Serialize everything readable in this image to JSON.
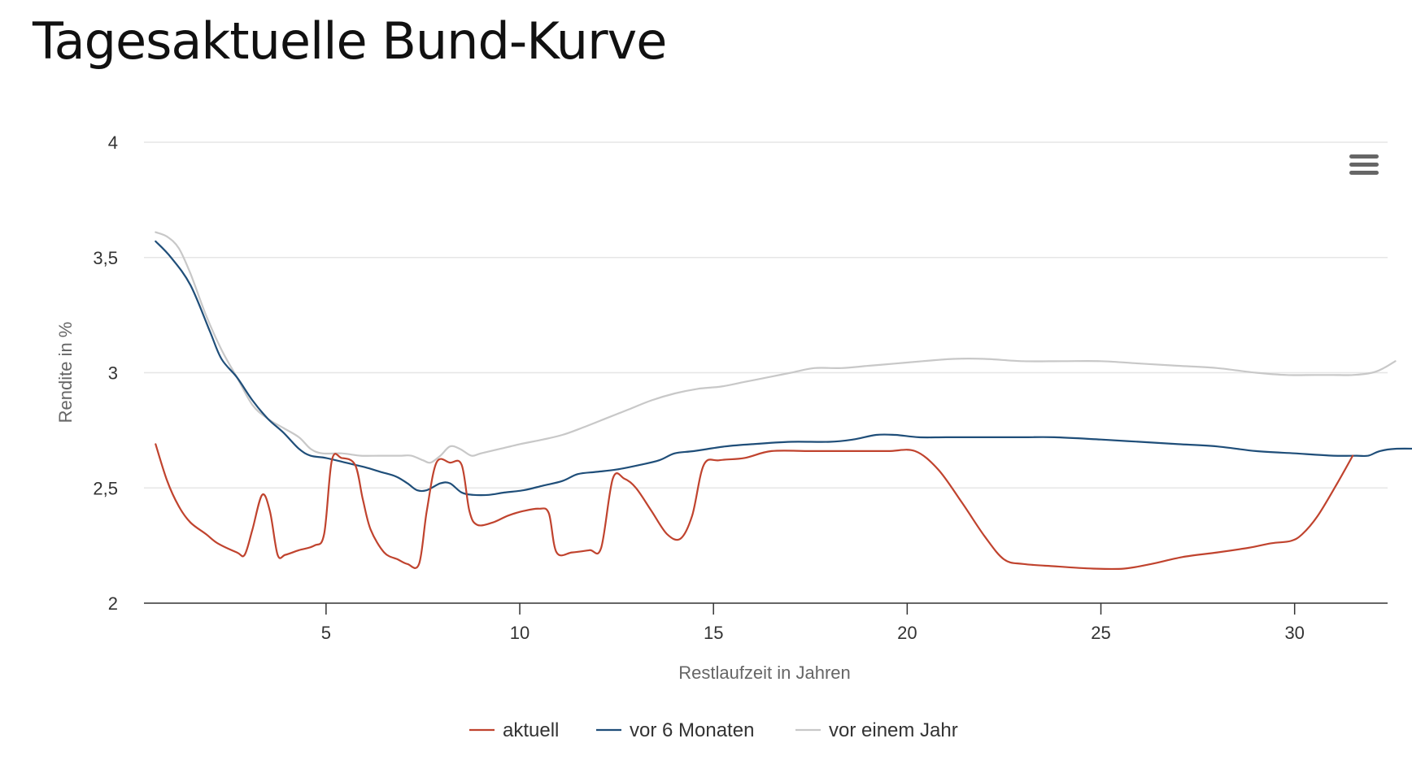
{
  "page": {
    "title": "Tagesaktuelle Bund-Kurve",
    "menu_icon": "hamburger-menu-icon"
  },
  "colors": {
    "aktuell": "#c0432e",
    "vor_6_monaten": "#1f4e79",
    "vor_einem_jahr": "#c8c8c8",
    "grid": "#e6e6e6",
    "axis": "#333333"
  },
  "chart_data": {
    "type": "line",
    "title": "Tagesaktuelle Bund-Kurve",
    "xlabel": "Restlaufzeit in Jahren",
    "ylabel": "Rendite in %",
    "xlim": [
      0.3,
      32.4
    ],
    "ylim": [
      2,
      4
    ],
    "x_ticks": [
      5,
      10,
      15,
      20,
      25,
      30
    ],
    "x_tick_labels": [
      "5",
      "10",
      "15",
      "20",
      "25",
      "30"
    ],
    "y_ticks": [
      2,
      2.5,
      3,
      3.5,
      4
    ],
    "y_tick_labels": [
      "2",
      "2,5",
      "3",
      "3,5",
      "4"
    ],
    "grid": true,
    "legend_position": "bottom-center",
    "series": [
      {
        "name": "aktuell",
        "color": "#c0432e",
        "points": [
          [
            0.6,
            2.69
          ],
          [
            0.9,
            2.53
          ],
          [
            1.2,
            2.42
          ],
          [
            1.5,
            2.35
          ],
          [
            1.9,
            2.3
          ],
          [
            2.2,
            2.26
          ],
          [
            2.7,
            2.22
          ],
          [
            2.9,
            2.21
          ],
          [
            3.1,
            2.32
          ],
          [
            3.35,
            2.47
          ],
          [
            3.55,
            2.4
          ],
          [
            3.75,
            2.21
          ],
          [
            3.95,
            2.21
          ],
          [
            4.3,
            2.23
          ],
          [
            4.7,
            2.25
          ],
          [
            4.95,
            2.3
          ],
          [
            5.15,
            2.62
          ],
          [
            5.4,
            2.63
          ],
          [
            5.75,
            2.6
          ],
          [
            5.95,
            2.45
          ],
          [
            6.15,
            2.32
          ],
          [
            6.5,
            2.22
          ],
          [
            6.85,
            2.19
          ],
          [
            7.1,
            2.17
          ],
          [
            7.4,
            2.17
          ],
          [
            7.6,
            2.4
          ],
          [
            7.85,
            2.61
          ],
          [
            8.2,
            2.61
          ],
          [
            8.5,
            2.6
          ],
          [
            8.7,
            2.4
          ],
          [
            8.9,
            2.34
          ],
          [
            9.3,
            2.35
          ],
          [
            9.7,
            2.38
          ],
          [
            10.1,
            2.4
          ],
          [
            10.5,
            2.41
          ],
          [
            10.75,
            2.39
          ],
          [
            10.95,
            2.22
          ],
          [
            11.35,
            2.22
          ],
          [
            11.8,
            2.23
          ],
          [
            12.1,
            2.24
          ],
          [
            12.4,
            2.54
          ],
          [
            12.7,
            2.54
          ],
          [
            13.0,
            2.5
          ],
          [
            13.4,
            2.4
          ],
          [
            13.8,
            2.3
          ],
          [
            14.15,
            2.28
          ],
          [
            14.45,
            2.38
          ],
          [
            14.75,
            2.6
          ],
          [
            15.15,
            2.62
          ],
          [
            15.8,
            2.63
          ],
          [
            16.5,
            2.66
          ],
          [
            17.5,
            2.66
          ],
          [
            18.5,
            2.66
          ],
          [
            19.5,
            2.66
          ],
          [
            20.2,
            2.66
          ],
          [
            20.8,
            2.58
          ],
          [
            21.4,
            2.44
          ],
          [
            22.0,
            2.29
          ],
          [
            22.5,
            2.19
          ],
          [
            23.0,
            2.17
          ],
          [
            23.8,
            2.16
          ],
          [
            24.8,
            2.15
          ],
          [
            25.6,
            2.15
          ],
          [
            26.3,
            2.17
          ],
          [
            27.1,
            2.2
          ],
          [
            28.0,
            2.22
          ],
          [
            28.8,
            2.24
          ],
          [
            29.4,
            2.26
          ],
          [
            29.9,
            2.27
          ],
          [
            30.2,
            2.3
          ],
          [
            30.6,
            2.38
          ],
          [
            31.1,
            2.52
          ],
          [
            31.5,
            2.64
          ]
        ]
      },
      {
        "name": "vor 6 Monaten",
        "color": "#1f4e79",
        "points": [
          [
            0.6,
            3.57
          ],
          [
            1.0,
            3.5
          ],
          [
            1.5,
            3.38
          ],
          [
            2.0,
            3.18
          ],
          [
            2.3,
            3.06
          ],
          [
            2.7,
            2.98
          ],
          [
            3.1,
            2.88
          ],
          [
            3.5,
            2.8
          ],
          [
            3.9,
            2.74
          ],
          [
            4.3,
            2.67
          ],
          [
            4.6,
            2.64
          ],
          [
            5.0,
            2.63
          ],
          [
            5.5,
            2.61
          ],
          [
            6.0,
            2.59
          ],
          [
            6.4,
            2.57
          ],
          [
            6.8,
            2.55
          ],
          [
            7.1,
            2.52
          ],
          [
            7.35,
            2.49
          ],
          [
            7.6,
            2.49
          ],
          [
            7.95,
            2.52
          ],
          [
            8.2,
            2.52
          ],
          [
            8.5,
            2.48
          ],
          [
            8.8,
            2.47
          ],
          [
            9.2,
            2.47
          ],
          [
            9.6,
            2.48
          ],
          [
            10.1,
            2.49
          ],
          [
            10.6,
            2.51
          ],
          [
            11.1,
            2.53
          ],
          [
            11.5,
            2.56
          ],
          [
            12.0,
            2.57
          ],
          [
            12.5,
            2.58
          ],
          [
            13.1,
            2.6
          ],
          [
            13.6,
            2.62
          ],
          [
            14.0,
            2.65
          ],
          [
            14.5,
            2.66
          ],
          [
            15.3,
            2.68
          ],
          [
            16.0,
            2.69
          ],
          [
            17.0,
            2.7
          ],
          [
            18.0,
            2.7
          ],
          [
            18.6,
            2.71
          ],
          [
            19.2,
            2.73
          ],
          [
            19.7,
            2.73
          ],
          [
            20.3,
            2.72
          ],
          [
            21.0,
            2.72
          ],
          [
            22.0,
            2.72
          ],
          [
            23.0,
            2.72
          ],
          [
            23.8,
            2.72
          ],
          [
            25.0,
            2.71
          ],
          [
            26.0,
            2.7
          ],
          [
            27.0,
            2.69
          ],
          [
            28.0,
            2.68
          ],
          [
            29.0,
            2.66
          ],
          [
            30.0,
            2.65
          ],
          [
            31.0,
            2.64
          ],
          [
            31.6,
            2.64
          ],
          [
            31.9,
            2.64
          ],
          [
            32.2,
            2.66
          ],
          [
            32.6,
            2.67
          ],
          [
            33.3,
            2.67
          ]
        ]
      },
      {
        "name": "vor einem Jahr",
        "color": "#c8c8c8",
        "points": [
          [
            0.6,
            3.61
          ],
          [
            0.9,
            3.59
          ],
          [
            1.2,
            3.54
          ],
          [
            1.5,
            3.43
          ],
          [
            1.9,
            3.25
          ],
          [
            2.3,
            3.1
          ],
          [
            2.7,
            2.98
          ],
          [
            3.1,
            2.86
          ],
          [
            3.5,
            2.8
          ],
          [
            3.9,
            2.76
          ],
          [
            4.3,
            2.72
          ],
          [
            4.6,
            2.67
          ],
          [
            4.9,
            2.65
          ],
          [
            5.4,
            2.65
          ],
          [
            5.9,
            2.64
          ],
          [
            6.4,
            2.64
          ],
          [
            6.9,
            2.64
          ],
          [
            7.2,
            2.64
          ],
          [
            7.5,
            2.62
          ],
          [
            7.7,
            2.61
          ],
          [
            7.95,
            2.64
          ],
          [
            8.2,
            2.68
          ],
          [
            8.45,
            2.67
          ],
          [
            8.75,
            2.64
          ],
          [
            9.0,
            2.65
          ],
          [
            9.5,
            2.67
          ],
          [
            10.0,
            2.69
          ],
          [
            10.6,
            2.71
          ],
          [
            11.1,
            2.73
          ],
          [
            11.6,
            2.76
          ],
          [
            12.2,
            2.8
          ],
          [
            12.8,
            2.84
          ],
          [
            13.4,
            2.88
          ],
          [
            14.0,
            2.91
          ],
          [
            14.6,
            2.93
          ],
          [
            15.2,
            2.94
          ],
          [
            15.8,
            2.96
          ],
          [
            16.4,
            2.98
          ],
          [
            17.0,
            3.0
          ],
          [
            17.6,
            3.02
          ],
          [
            18.3,
            3.02
          ],
          [
            19.0,
            3.03
          ],
          [
            19.7,
            3.04
          ],
          [
            20.4,
            3.05
          ],
          [
            21.2,
            3.06
          ],
          [
            22.0,
            3.06
          ],
          [
            23.0,
            3.05
          ],
          [
            24.0,
            3.05
          ],
          [
            25.0,
            3.05
          ],
          [
            26.0,
            3.04
          ],
          [
            27.0,
            3.03
          ],
          [
            28.0,
            3.02
          ],
          [
            29.0,
            3.0
          ],
          [
            29.8,
            2.99
          ],
          [
            30.5,
            2.99
          ],
          [
            31.0,
            2.99
          ],
          [
            31.5,
            2.99
          ],
          [
            32.0,
            3.0
          ],
          [
            32.3,
            3.02
          ],
          [
            32.6,
            3.05
          ]
        ]
      }
    ]
  }
}
